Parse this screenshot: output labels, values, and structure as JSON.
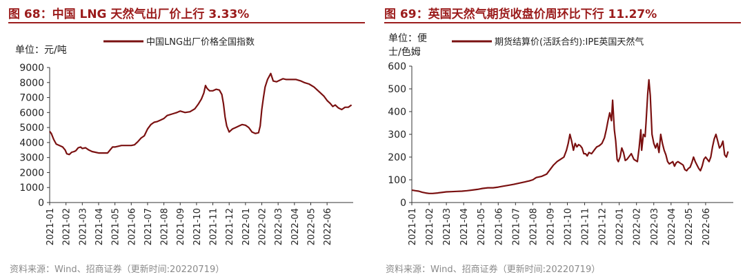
{
  "colors": {
    "accent": "#9b1c1c",
    "series": "#7a1010",
    "axis": "#333333",
    "source": "#8a8a8a"
  },
  "left": {
    "title": "图 68：中国 LNG 天然气出厂价上行 3.33%",
    "source": "资料来源：Wind、招商证券（更新时间:20220719）",
    "chart_data": {
      "type": "line",
      "ylabel": "单位：元/吨",
      "ylim": [
        0,
        9000
      ],
      "yticks": [
        0,
        1000,
        2000,
        3000,
        4000,
        5000,
        6000,
        7000,
        8000,
        9000
      ],
      "categories": [
        "2021-01",
        "2021-02",
        "2021-03",
        "2021-04",
        "2021-05",
        "2021-06",
        "2021-07",
        "2021-08",
        "2021-09",
        "2021-10",
        "2021-11",
        "2021-12",
        "2022-01",
        "2022-02",
        "2022-03",
        "2022-04",
        "2022-05",
        "2022-06"
      ],
      "xlim": [
        0,
        18.6
      ],
      "series": [
        {
          "name": "中国LNG出厂价格全国指数",
          "points": [
            [
              0.0,
              4750
            ],
            [
              0.1,
              4600
            ],
            [
              0.25,
              4200
            ],
            [
              0.4,
              3900
            ],
            [
              0.6,
              3800
            ],
            [
              0.8,
              3700
            ],
            [
              0.95,
              3500
            ],
            [
              1.05,
              3250
            ],
            [
              1.2,
              3200
            ],
            [
              1.35,
              3350
            ],
            [
              1.5,
              3400
            ],
            [
              1.6,
              3450
            ],
            [
              1.75,
              3650
            ],
            [
              1.9,
              3700
            ],
            [
              2.0,
              3600
            ],
            [
              2.2,
              3650
            ],
            [
              2.4,
              3500
            ],
            [
              2.6,
              3400
            ],
            [
              2.8,
              3350
            ],
            [
              3.0,
              3300
            ],
            [
              3.2,
              3300
            ],
            [
              3.4,
              3300
            ],
            [
              3.55,
              3300
            ],
            [
              3.7,
              3500
            ],
            [
              3.85,
              3700
            ],
            [
              4.0,
              3700
            ],
            [
              4.2,
              3750
            ],
            [
              4.4,
              3800
            ],
            [
              4.6,
              3800
            ],
            [
              4.8,
              3800
            ],
            [
              5.0,
              3800
            ],
            [
              5.2,
              3850
            ],
            [
              5.4,
              4050
            ],
            [
              5.6,
              4300
            ],
            [
              5.8,
              4450
            ],
            [
              6.0,
              4900
            ],
            [
              6.2,
              5200
            ],
            [
              6.4,
              5350
            ],
            [
              6.6,
              5400
            ],
            [
              6.8,
              5500
            ],
            [
              7.0,
              5600
            ],
            [
              7.2,
              5800
            ],
            [
              7.5,
              5900
            ],
            [
              7.8,
              6000
            ],
            [
              8.0,
              6100
            ],
            [
              8.3,
              6000
            ],
            [
              8.6,
              6050
            ],
            [
              8.9,
              6250
            ],
            [
              9.1,
              6550
            ],
            [
              9.3,
              6900
            ],
            [
              9.45,
              7300
            ],
            [
              9.55,
              7800
            ],
            [
              9.65,
              7600
            ],
            [
              9.8,
              7450
            ],
            [
              10.0,
              7450
            ],
            [
              10.2,
              7550
            ],
            [
              10.4,
              7500
            ],
            [
              10.55,
              7200
            ],
            [
              10.65,
              6600
            ],
            [
              10.75,
              5700
            ],
            [
              10.85,
              5100
            ],
            [
              11.0,
              4700
            ],
            [
              11.2,
              4900
            ],
            [
              11.4,
              5000
            ],
            [
              11.6,
              5100
            ],
            [
              11.8,
              5200
            ],
            [
              12.0,
              5150
            ],
            [
              12.2,
              5000
            ],
            [
              12.4,
              4700
            ],
            [
              12.6,
              4600
            ],
            [
              12.8,
              4650
            ],
            [
              12.9,
              5100
            ],
            [
              13.0,
              6200
            ],
            [
              13.1,
              7000
            ],
            [
              13.2,
              7700
            ],
            [
              13.35,
              8200
            ],
            [
              13.55,
              8600
            ],
            [
              13.7,
              8100
            ],
            [
              13.9,
              8050
            ],
            [
              14.1,
              8150
            ],
            [
              14.3,
              8250
            ],
            [
              14.5,
              8200
            ],
            [
              14.8,
              8200
            ],
            [
              15.1,
              8200
            ],
            [
              15.4,
              8100
            ],
            [
              15.6,
              8000
            ],
            [
              15.9,
              7900
            ],
            [
              16.2,
              7700
            ],
            [
              16.5,
              7400
            ],
            [
              16.8,
              7100
            ],
            [
              17.0,
              6800
            ],
            [
              17.2,
              6600
            ],
            [
              17.35,
              6400
            ],
            [
              17.5,
              6500
            ],
            [
              17.7,
              6300
            ],
            [
              17.9,
              6200
            ],
            [
              18.1,
              6350
            ],
            [
              18.3,
              6350
            ],
            [
              18.5,
              6500
            ]
          ]
        }
      ]
    }
  },
  "right": {
    "title": "图 69：英国天然气期货收盘价周环比下行 11.27%",
    "source": "资料来源：Wind、招商证券（更新时间:20220719）",
    "chart_data": {
      "type": "line",
      "ylabel_line1": "单位：便",
      "ylabel_line2": "士/色姆",
      "ylim": [
        0,
        600
      ],
      "yticks": [
        0,
        100,
        200,
        300,
        400,
        500,
        600
      ],
      "categories": [
        "2021-01",
        "2021-02",
        "2021-03",
        "2021-04",
        "2021-05",
        "2021-06",
        "2021-07",
        "2021-08",
        "2021-09",
        "2021-10",
        "2021-11",
        "2021-12",
        "2022-01",
        "2022-02",
        "2022-03",
        "2022-04",
        "2022-05",
        "2022-06"
      ],
      "xlim": [
        0,
        18.6
      ],
      "series": [
        {
          "name": "期货结算价(活跃合约):IPE英国天然气",
          "points": [
            [
              0.0,
              55
            ],
            [
              0.2,
              52
            ],
            [
              0.4,
              50
            ],
            [
              0.6,
              45
            ],
            [
              0.8,
              42
            ],
            [
              1.0,
              40
            ],
            [
              1.2,
              40
            ],
            [
              1.5,
              42
            ],
            [
              1.8,
              45
            ],
            [
              2.0,
              47
            ],
            [
              2.3,
              48
            ],
            [
              2.6,
              49
            ],
            [
              2.9,
              50
            ],
            [
              3.2,
              52
            ],
            [
              3.5,
              55
            ],
            [
              3.8,
              58
            ],
            [
              4.1,
              62
            ],
            [
              4.4,
              65
            ],
            [
              4.7,
              65
            ],
            [
              5.0,
              68
            ],
            [
              5.3,
              72
            ],
            [
              5.6,
              76
            ],
            [
              5.9,
              80
            ],
            [
              6.2,
              85
            ],
            [
              6.5,
              90
            ],
            [
              6.8,
              95
            ],
            [
              7.0,
              100
            ],
            [
              7.2,
              110
            ],
            [
              7.5,
              115
            ],
            [
              7.8,
              125
            ],
            [
              8.0,
              145
            ],
            [
              8.2,
              165
            ],
            [
              8.4,
              180
            ],
            [
              8.6,
              190
            ],
            [
              8.8,
              200
            ],
            [
              8.95,
              230
            ],
            [
              9.05,
              260
            ],
            [
              9.15,
              300
            ],
            [
              9.25,
              270
            ],
            [
              9.35,
              230
            ],
            [
              9.45,
              260
            ],
            [
              9.55,
              245
            ],
            [
              9.65,
              255
            ],
            [
              9.75,
              250
            ],
            [
              9.85,
              240
            ],
            [
              9.95,
              215
            ],
            [
              10.05,
              215
            ],
            [
              10.15,
              205
            ],
            [
              10.25,
              220
            ],
            [
              10.4,
              215
            ],
            [
              10.55,
              230
            ],
            [
              10.7,
              245
            ],
            [
              10.85,
              250
            ],
            [
              11.0,
              260
            ],
            [
              11.15,
              285
            ],
            [
              11.25,
              320
            ],
            [
              11.35,
              360
            ],
            [
              11.45,
              395
            ],
            [
              11.55,
              360
            ],
            [
              11.62,
              450
            ],
            [
              11.72,
              320
            ],
            [
              11.8,
              270
            ],
            [
              11.88,
              190
            ],
            [
              11.95,
              180
            ],
            [
              12.05,
              200
            ],
            [
              12.15,
              240
            ],
            [
              12.25,
              220
            ],
            [
              12.35,
              185
            ],
            [
              12.45,
              190
            ],
            [
              12.55,
              200
            ],
            [
              12.7,
              215
            ],
            [
              12.85,
              190
            ],
            [
              12.95,
              185
            ],
            [
              13.05,
              180
            ],
            [
              13.15,
              240
            ],
            [
              13.25,
              320
            ],
            [
              13.3,
              230
            ],
            [
              13.4,
              300
            ],
            [
              13.5,
              290
            ],
            [
              13.55,
              350
            ],
            [
              13.65,
              480
            ],
            [
              13.72,
              540
            ],
            [
              13.8,
              470
            ],
            [
              13.9,
              300
            ],
            [
              14.0,
              260
            ],
            [
              14.1,
              240
            ],
            [
              14.2,
              260
            ],
            [
              14.3,
              220
            ],
            [
              14.4,
              300
            ],
            [
              14.5,
              260
            ],
            [
              14.6,
              230
            ],
            [
              14.7,
              210
            ],
            [
              14.8,
              180
            ],
            [
              14.9,
              170
            ],
            [
              15.0,
              175
            ],
            [
              15.1,
              180
            ],
            [
              15.2,
              160
            ],
            [
              15.3,
              175
            ],
            [
              15.4,
              180
            ],
            [
              15.5,
              175
            ],
            [
              15.6,
              170
            ],
            [
              15.7,
              165
            ],
            [
              15.8,
              145
            ],
            [
              15.9,
              140
            ],
            [
              16.0,
              150
            ],
            [
              16.1,
              155
            ],
            [
              16.2,
              175
            ],
            [
              16.3,
              200
            ],
            [
              16.4,
              180
            ],
            [
              16.5,
              165
            ],
            [
              16.6,
              150
            ],
            [
              16.7,
              140
            ],
            [
              16.8,
              160
            ],
            [
              16.9,
              190
            ],
            [
              17.0,
              200
            ],
            [
              17.1,
              190
            ],
            [
              17.2,
              180
            ],
            [
              17.3,
              200
            ],
            [
              17.4,
              245
            ],
            [
              17.5,
              280
            ],
            [
              17.6,
              300
            ],
            [
              17.7,
              270
            ],
            [
              17.8,
              240
            ],
            [
              17.9,
              250
            ],
            [
              18.0,
              270
            ],
            [
              18.1,
              210
            ],
            [
              18.2,
              200
            ],
            [
              18.3,
              225
            ]
          ]
        }
      ]
    }
  }
}
